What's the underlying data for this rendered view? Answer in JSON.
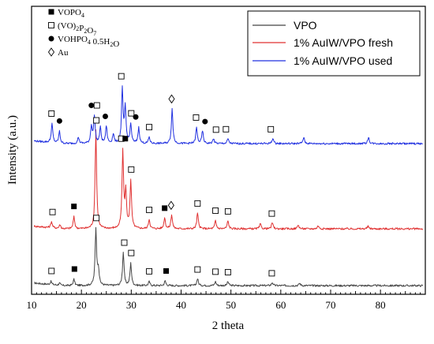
{
  "chart_data": {
    "type": "line",
    "xlabel": "2 theta",
    "ylabel": "Intensity (a.u.)",
    "xlim": [
      10,
      89
    ],
    "x_ticks": [
      "10",
      "20",
      "30",
      "40",
      "50",
      "60",
      "70",
      "80"
    ],
    "y_tick_labels": false,
    "grid": false,
    "legend_position": "top-right",
    "series": [
      {
        "name": "VPO",
        "color": "#444444",
        "offset": 0,
        "peaks": [
          [
            13.9,
            4
          ],
          [
            15.6,
            3
          ],
          [
            18.5,
            8
          ],
          [
            22.9,
            72
          ],
          [
            23.4,
            20
          ],
          [
            28.4,
            42
          ],
          [
            29.9,
            28
          ],
          [
            33.6,
            5
          ],
          [
            36.8,
            6
          ],
          [
            43.3,
            9
          ],
          [
            46.9,
            5
          ],
          [
            49.4,
            5
          ],
          [
            58.3,
            4
          ],
          [
            63.8,
            3
          ]
        ]
      },
      {
        "name": "1% AuIW/VPO fresh",
        "color": "#e03030",
        "offset": 84,
        "peaks": [
          [
            14.0,
            8
          ],
          [
            15.7,
            5
          ],
          [
            18.5,
            15
          ],
          [
            22.9,
            125
          ],
          [
            28.3,
            98
          ],
          [
            28.9,
            45
          ],
          [
            29.9,
            60
          ],
          [
            33.6,
            12
          ],
          [
            36.7,
            14
          ],
          [
            38.1,
            18
          ],
          [
            43.3,
            20
          ],
          [
            46.9,
            10
          ],
          [
            49.4,
            10
          ],
          [
            55.9,
            6
          ],
          [
            58.3,
            8
          ],
          [
            63.5,
            5
          ],
          [
            67.5,
            4
          ],
          [
            77.5,
            3
          ]
        ]
      },
      {
        "name": "1% AuIW/VPO used",
        "color": "#2030e0",
        "offset": 177,
        "peaks": [
          [
            14.1,
            24
          ],
          [
            15.6,
            15
          ],
          [
            19.4,
            8
          ],
          [
            22.0,
            22
          ],
          [
            22.6,
            35
          ],
          [
            23.8,
            20
          ],
          [
            25.0,
            22
          ],
          [
            26.4,
            12
          ],
          [
            28.2,
            68
          ],
          [
            28.8,
            45
          ],
          [
            29.9,
            24
          ],
          [
            31.5,
            20
          ],
          [
            33.6,
            8
          ],
          [
            38.2,
            44
          ],
          [
            43.1,
            20
          ],
          [
            44.3,
            16
          ],
          [
            46.5,
            6
          ],
          [
            49.4,
            6
          ],
          [
            58.4,
            7
          ],
          [
            64.6,
            8
          ],
          [
            77.6,
            8
          ]
        ]
      }
    ],
    "phase_key": [
      {
        "symbol": "filled-square",
        "label": "VOPO",
        "sub": "4"
      },
      {
        "symbol": "open-square",
        "label": "(VO)",
        "sub": "2",
        "label2": "P",
        "sub2": "2",
        "label3": "O",
        "sub3": "7"
      },
      {
        "symbol": "filled-circle",
        "label": "VOHPO",
        "sub": "4",
        "label2": " 0.5H",
        "sub2": "2",
        "label3": "O"
      },
      {
        "symbol": "open-diamond",
        "label": "Au"
      }
    ],
    "markers": [
      {
        "symbol": "open-square",
        "x": 14.0,
        "curve": 0
      },
      {
        "symbol": "filled-square",
        "x": 18.6,
        "curve": 0
      },
      {
        "symbol": "open-square",
        "x": 23.0,
        "curve": 0
      },
      {
        "symbol": "open-square",
        "x": 28.6,
        "curve": 0
      },
      {
        "symbol": "open-square",
        "x": 30.0,
        "curve": 0
      },
      {
        "symbol": "open-square",
        "x": 33.6,
        "curve": 0
      },
      {
        "symbol": "filled-square",
        "x": 37.0,
        "curve": 0
      },
      {
        "symbol": "open-square",
        "x": 43.3,
        "curve": 0
      },
      {
        "symbol": "open-square",
        "x": 46.9,
        "curve": 0
      },
      {
        "symbol": "open-square",
        "x": 49.4,
        "curve": 0
      },
      {
        "symbol": "open-square",
        "x": 58.2,
        "curve": 0
      },
      {
        "symbol": "open-square",
        "x": 14.2,
        "curve": 1
      },
      {
        "symbol": "filled-square",
        "x": 18.5,
        "curve": 1
      },
      {
        "symbol": "open-square",
        "x": 23.0,
        "curve": 1
      },
      {
        "symbol": "open-square",
        "x": 28.0,
        "curve": 1
      },
      {
        "symbol": "filled-square",
        "x": 28.8,
        "curve": 1
      },
      {
        "symbol": "open-square",
        "x": 30.0,
        "curve": 1
      },
      {
        "symbol": "open-square",
        "x": 33.6,
        "curve": 1
      },
      {
        "symbol": "filled-square",
        "x": 36.7,
        "curve": 1
      },
      {
        "symbol": "open-diamond",
        "x": 38.0,
        "curve": 1
      },
      {
        "symbol": "open-square",
        "x": 43.3,
        "curve": 1
      },
      {
        "symbol": "open-square",
        "x": 46.9,
        "curve": 1
      },
      {
        "symbol": "open-square",
        "x": 49.4,
        "curve": 1
      },
      {
        "symbol": "open-square",
        "x": 58.2,
        "curve": 1
      },
      {
        "symbol": "open-square",
        "x": 14.0,
        "curve": 2
      },
      {
        "symbol": "filled-circle",
        "x": 15.6,
        "curve": 2
      },
      {
        "symbol": "filled-circle",
        "x": 22.0,
        "curve": 2
      },
      {
        "symbol": "open-square",
        "x": 23.1,
        "curve": 2
      },
      {
        "symbol": "filled-circle",
        "x": 24.8,
        "curve": 2
      },
      {
        "symbol": "open-square",
        "x": 28.0,
        "curve": 2
      },
      {
        "symbol": "open-square",
        "x": 30.0,
        "curve": 2
      },
      {
        "symbol": "filled-circle",
        "x": 30.9,
        "curve": 2
      },
      {
        "symbol": "open-square",
        "x": 33.6,
        "curve": 2
      },
      {
        "symbol": "open-diamond",
        "x": 38.1,
        "curve": 2
      },
      {
        "symbol": "open-square",
        "x": 43.0,
        "curve": 2
      },
      {
        "symbol": "filled-circle",
        "x": 44.8,
        "curve": 2
      },
      {
        "symbol": "open-square",
        "x": 47.0,
        "curve": 2
      },
      {
        "symbol": "open-square",
        "x": 49.0,
        "curve": 2
      },
      {
        "symbol": "open-square",
        "x": 58.0,
        "curve": 2
      }
    ]
  }
}
